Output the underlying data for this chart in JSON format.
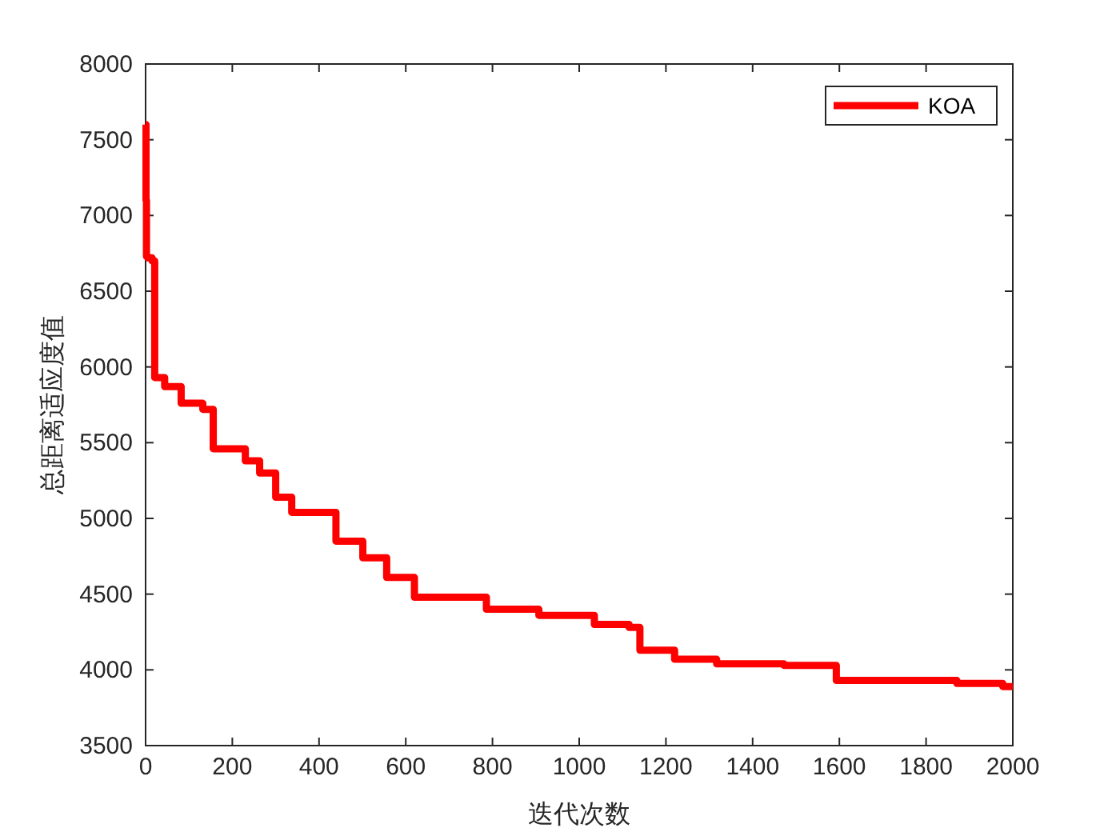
{
  "chart_data": {
    "type": "step",
    "xlabel": "迭代次数",
    "ylabel": "总距离适应度值",
    "xlim": [
      0,
      2000
    ],
    "xticks": [
      0,
      200,
      400,
      600,
      800,
      1000,
      1200,
      1400,
      1600,
      1800,
      2000
    ],
    "ylim": [
      3500,
      8000
    ],
    "yticks": [
      3500,
      4000,
      4500,
      5000,
      5500,
      6000,
      6500,
      7000,
      7500,
      8000
    ],
    "grid": false,
    "legend": "top right",
    "marker": "none",
    "line_style": "solid",
    "series": [
      {
        "name": "KOA",
        "color": "#ff0000",
        "x": [
          0,
          1,
          2,
          5,
          15,
          21,
          44,
          82,
          132,
          156,
          230,
          263,
          300,
          337,
          439,
          501,
          556,
          620,
          786,
          907,
          1035,
          1115,
          1140,
          1220,
          1317,
          1472,
          1593,
          1871,
          1977,
          2000
        ],
        "values": [
          7600,
          7100,
          6730,
          6720,
          6700,
          5930,
          5870,
          5760,
          5720,
          5460,
          5380,
          5300,
          5140,
          5040,
          4850,
          4740,
          4610,
          4480,
          4400,
          4360,
          4300,
          4280,
          4130,
          4070,
          4040,
          4030,
          3930,
          3910,
          3890,
          3890
        ]
      }
    ]
  }
}
